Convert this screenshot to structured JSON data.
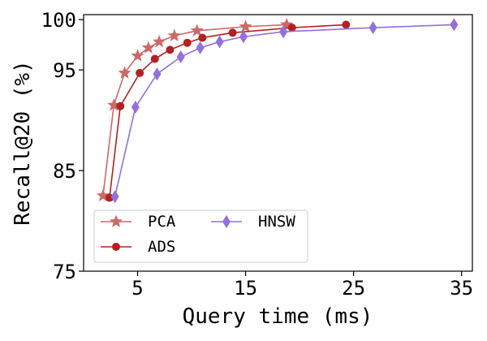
{
  "chart_data": {
    "type": "line",
    "xlabel": "Query time (ms)",
    "ylabel": "Recall@20 (%)",
    "xlim": [
      0,
      36
    ],
    "ylim": [
      75,
      100.5
    ],
    "xticks": [
      5,
      15,
      25,
      35
    ],
    "yticks": [
      75,
      85,
      95,
      100
    ],
    "grid": false,
    "legend_position": "bottom-left",
    "legend_columns": 2,
    "series": [
      {
        "name": "PCA",
        "color": "#cd6868",
        "marker": "star",
        "x": [
          1.8,
          2.8,
          3.8,
          5.0,
          6.0,
          7.0,
          8.4,
          10.5,
          15.0,
          18.8
        ],
        "y": [
          82.5,
          91.5,
          94.7,
          96.4,
          97.2,
          97.8,
          98.4,
          98.9,
          99.3,
          99.5
        ]
      },
      {
        "name": "ADS",
        "color": "#b22222",
        "marker": "circle",
        "x": [
          2.4,
          3.4,
          5.2,
          6.6,
          8.0,
          9.6,
          11.0,
          13.8,
          19.3,
          24.3
        ],
        "y": [
          82.3,
          91.4,
          94.7,
          96.1,
          97.0,
          97.7,
          98.2,
          98.7,
          99.2,
          99.5
        ]
      },
      {
        "name": "HNSW",
        "color": "#9370db",
        "marker": "diamond",
        "x": [
          2.9,
          4.8,
          6.8,
          9.0,
          10.8,
          12.6,
          14.8,
          18.5,
          26.8,
          34.3
        ],
        "y": [
          82.4,
          91.3,
          94.6,
          96.3,
          97.2,
          97.8,
          98.3,
          98.8,
          99.2,
          99.5
        ]
      }
    ]
  }
}
